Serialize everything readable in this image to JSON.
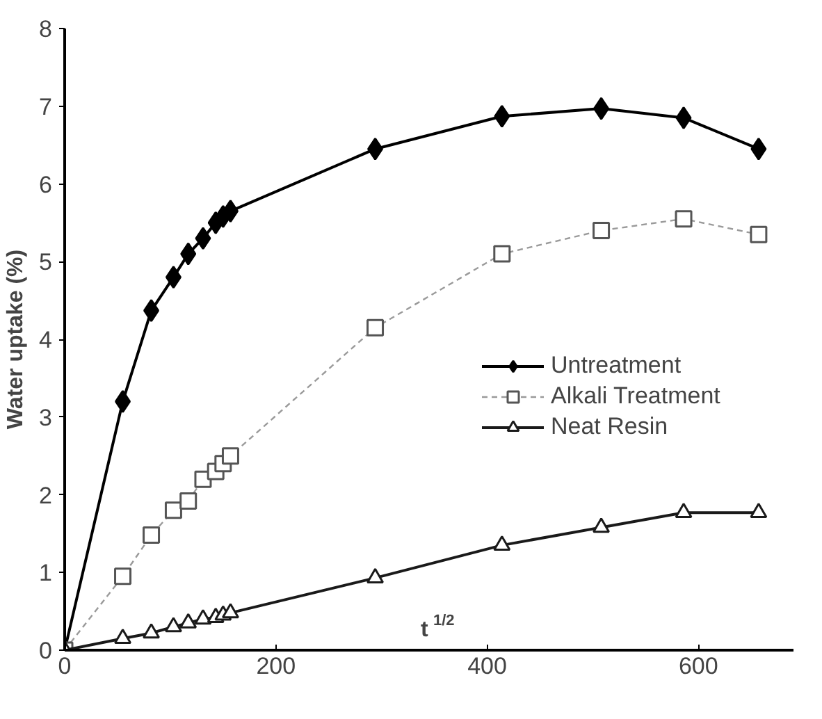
{
  "chart_data": {
    "type": "line",
    "xlabel": "t$^{1/2}$",
    "ylabel": "Water uptake (%)",
    "x": [
      0,
      55,
      82,
      103,
      117,
      131,
      143,
      150,
      157,
      294,
      414,
      508,
      586,
      657
    ],
    "xlim": [
      0,
      690
    ],
    "ylim": [
      0,
      8
    ],
    "xticks": [
      0,
      200,
      400,
      600
    ],
    "yticks": [
      0,
      1,
      2,
      3,
      4,
      5,
      6,
      7,
      8
    ],
    "grid": false,
    "legend": "right",
    "series": [
      {
        "name": "Untreatment",
        "color": "#000000",
        "marker": "diamond",
        "line_style": "solid",
        "values": [
          0,
          3.2,
          4.37,
          4.8,
          5.1,
          5.3,
          5.5,
          5.58,
          5.65,
          6.45,
          6.87,
          6.97,
          6.85,
          6.45
        ]
      },
      {
        "name": "Alkali Treatment",
        "color": "#9a9a9a",
        "marker": "square",
        "line_style": "dashed",
        "values": [
          0,
          0.95,
          1.48,
          1.8,
          1.92,
          2.2,
          2.3,
          2.4,
          2.5,
          4.15,
          5.1,
          5.4,
          5.55,
          5.35
        ]
      },
      {
        "name": "Neat Resin",
        "color": "#1a1a1a",
        "marker": "triangle",
        "line_style": "solid",
        "values": [
          0,
          0.15,
          0.22,
          0.3,
          0.35,
          0.4,
          0.42,
          0.45,
          0.48,
          0.93,
          1.35,
          1.58,
          1.77,
          1.77
        ]
      }
    ]
  }
}
